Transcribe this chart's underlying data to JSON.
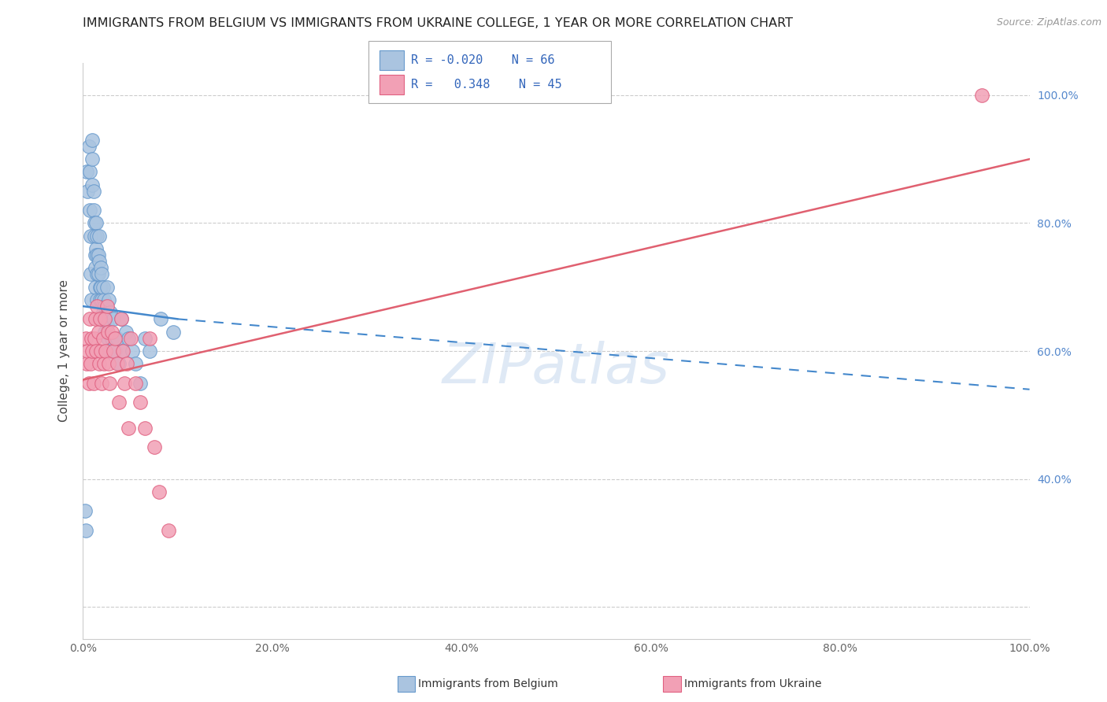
{
  "title": "IMMIGRANTS FROM BELGIUM VS IMMIGRANTS FROM UKRAINE COLLEGE, 1 YEAR OR MORE CORRELATION CHART",
  "source": "Source: ZipAtlas.com",
  "ylabel": "College, 1 year or more",
  "xlim": [
    0.0,
    1.0
  ],
  "ylim": [
    0.15,
    1.05
  ],
  "xtick_values": [
    0.0,
    0.2,
    0.4,
    0.6,
    0.8,
    1.0
  ],
  "xtick_labels": [
    "0.0%",
    "20.0%",
    "40.0%",
    "60.0%",
    "80.0%",
    "100.0%"
  ],
  "ytick_right_values": [
    0.4,
    0.6,
    0.8,
    1.0
  ],
  "ytick_right_labels": [
    "40.0%",
    "60.0%",
    "80.0%",
    "100.0%"
  ],
  "belgium_color": "#aac4e0",
  "ukraine_color": "#f2a0b5",
  "belgium_edge_color": "#6699cc",
  "ukraine_edge_color": "#e06080",
  "trend_belgium_color": "#4488cc",
  "trend_ukraine_color": "#e06070",
  "legend_R_belgium": "-0.020",
  "legend_N_belgium": "66",
  "legend_R_ukraine": "0.348",
  "legend_N_ukraine": "45",
  "watermark": "ZIPatlas",
  "background_color": "#ffffff",
  "grid_color": "#cccccc",
  "belgium_x": [
    0.002,
    0.003,
    0.004,
    0.005,
    0.006,
    0.007,
    0.007,
    0.008,
    0.008,
    0.009,
    0.01,
    0.01,
    0.01,
    0.011,
    0.011,
    0.012,
    0.012,
    0.013,
    0.013,
    0.013,
    0.014,
    0.014,
    0.015,
    0.015,
    0.015,
    0.015,
    0.016,
    0.016,
    0.017,
    0.017,
    0.018,
    0.018,
    0.018,
    0.019,
    0.019,
    0.02,
    0.02,
    0.021,
    0.021,
    0.022,
    0.022,
    0.023,
    0.023,
    0.024,
    0.025,
    0.025,
    0.026,
    0.027,
    0.028,
    0.029,
    0.03,
    0.032,
    0.034,
    0.036,
    0.038,
    0.04,
    0.042,
    0.045,
    0.048,
    0.052,
    0.055,
    0.06,
    0.065,
    0.07,
    0.082,
    0.095
  ],
  "belgium_y": [
    0.35,
    0.32,
    0.88,
    0.85,
    0.92,
    0.88,
    0.82,
    0.78,
    0.72,
    0.68,
    0.93,
    0.9,
    0.86,
    0.85,
    0.82,
    0.8,
    0.78,
    0.75,
    0.73,
    0.7,
    0.8,
    0.76,
    0.78,
    0.75,
    0.72,
    0.68,
    0.75,
    0.72,
    0.78,
    0.74,
    0.7,
    0.68,
    0.65,
    0.73,
    0.7,
    0.72,
    0.68,
    0.7,
    0.66,
    0.68,
    0.65,
    0.67,
    0.63,
    0.65,
    0.7,
    0.64,
    0.62,
    0.68,
    0.6,
    0.66,
    0.62,
    0.65,
    0.6,
    0.62,
    0.58,
    0.65,
    0.6,
    0.63,
    0.62,
    0.6,
    0.58,
    0.55,
    0.62,
    0.6,
    0.65,
    0.63
  ],
  "ukraine_x": [
    0.003,
    0.004,
    0.005,
    0.006,
    0.007,
    0.008,
    0.009,
    0.01,
    0.011,
    0.012,
    0.013,
    0.014,
    0.015,
    0.016,
    0.017,
    0.018,
    0.019,
    0.02,
    0.021,
    0.022,
    0.023,
    0.024,
    0.025,
    0.026,
    0.027,
    0.028,
    0.03,
    0.032,
    0.034,
    0.036,
    0.038,
    0.04,
    0.042,
    0.044,
    0.046,
    0.048,
    0.05,
    0.055,
    0.06,
    0.065,
    0.07,
    0.075,
    0.08,
    0.09,
    0.95
  ],
  "ukraine_y": [
    0.62,
    0.58,
    0.6,
    0.55,
    0.65,
    0.58,
    0.62,
    0.6,
    0.55,
    0.62,
    0.65,
    0.6,
    0.67,
    0.63,
    0.58,
    0.65,
    0.6,
    0.55,
    0.62,
    0.58,
    0.65,
    0.6,
    0.67,
    0.63,
    0.58,
    0.55,
    0.63,
    0.6,
    0.62,
    0.58,
    0.52,
    0.65,
    0.6,
    0.55,
    0.58,
    0.48,
    0.62,
    0.55,
    0.52,
    0.48,
    0.62,
    0.45,
    0.38,
    0.32,
    1.0
  ],
  "trend_belgium_x0": 0.0,
  "trend_belgium_x_solid_end": 0.1,
  "trend_belgium_x_dash_end": 1.0,
  "trend_belgium_y0": 0.67,
  "trend_belgium_y_solid_end": 0.65,
  "trend_belgium_y_dash_end": 0.54,
  "trend_ukraine_x0": 0.0,
  "trend_ukraine_x1": 1.0,
  "trend_ukraine_y0": 0.555,
  "trend_ukraine_y1": 0.9
}
